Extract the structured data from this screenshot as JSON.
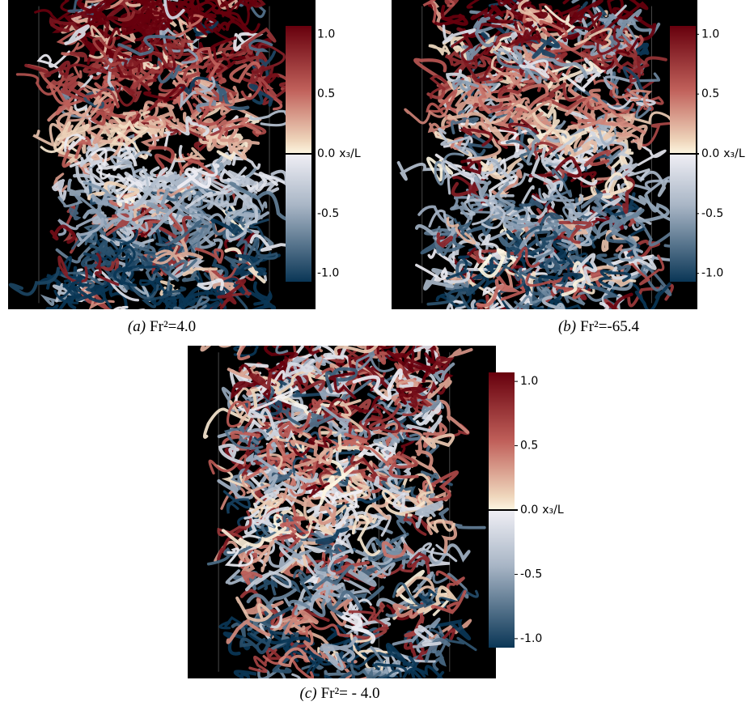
{
  "figure": {
    "colorbar": {
      "label": "x₃/L",
      "lim": [
        -1.07,
        1.07
      ],
      "ticks": [
        {
          "value": 1,
          "label": "1.0"
        },
        {
          "value": 0.5,
          "label": "0.5"
        },
        {
          "value": 0,
          "label": "0.0"
        },
        {
          "value": -0.5,
          "label": "-0.5"
        },
        {
          "value": -1,
          "label": "-1.0"
        }
      ]
    },
    "panels": [
      {
        "label": "(a)",
        "caption": "Fr²=4.0"
      },
      {
        "label": "(b)",
        "caption": "Fr²=-65.4"
      },
      {
        "label": "(c)",
        "caption": "Fr²= - 4.0"
      }
    ]
  }
}
